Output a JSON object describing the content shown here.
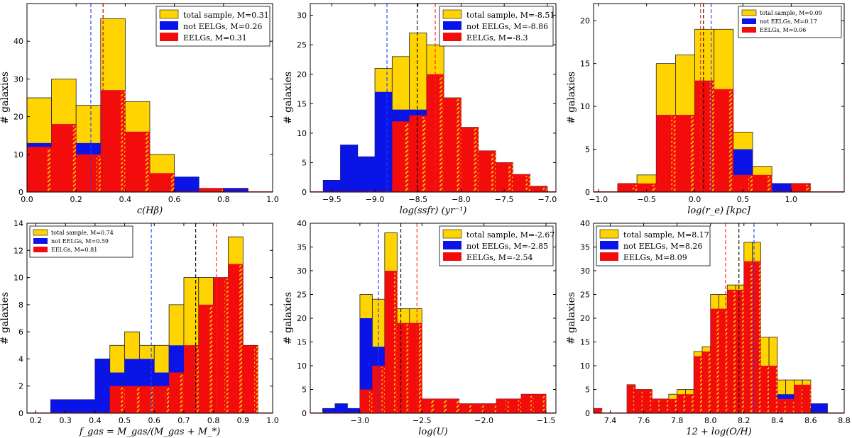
{
  "figure": {
    "ylabel": "# galaxies"
  },
  "colors": {
    "total": "#FFD400",
    "not": "#0A14E6",
    "eelg": "#F20C0C",
    "median_total": "#000000",
    "median_not": "#1E3CFF",
    "median_eelg": "#FF2020"
  },
  "chart_data": [
    {
      "type": "bar",
      "name": "c-hbeta",
      "xlabel": "c(Hβ)",
      "ylabel": "# galaxies",
      "xlim": [
        0.0,
        1.0
      ],
      "ylim": [
        0,
        50
      ],
      "xticks": [
        0.0,
        0.2,
        0.4,
        0.6,
        0.8,
        1.0
      ],
      "xtick_labels": [
        "0.0",
        "0.2",
        "0.4",
        "0.6",
        "0.8",
        "1.0"
      ],
      "yticks": [
        0,
        10,
        20,
        30,
        40
      ],
      "edges": [
        0.0,
        0.1,
        0.2,
        0.3,
        0.4,
        0.5,
        0.6,
        0.7,
        0.8,
        0.9,
        1.0
      ],
      "series": [
        {
          "name": "total sample",
          "label": "total sample, M=0.31",
          "values": [
            25,
            30,
            23,
            46,
            24,
            10,
            4,
            1,
            1,
            0
          ]
        },
        {
          "name": "not EELGs",
          "label": "not EELGs, M=0.26",
          "values": [
            13,
            18,
            13,
            27,
            16,
            5,
            4,
            0,
            1,
            0
          ]
        },
        {
          "name": "EELGs",
          "label": "EELGs, M=0.31",
          "values": [
            12,
            18,
            10,
            27,
            16,
            5,
            0,
            1,
            0,
            0
          ]
        }
      ],
      "medians": {
        "total": 0.31,
        "not": 0.26,
        "eelg": 0.31
      },
      "legend_size": "large"
    },
    {
      "type": "bar",
      "name": "ssfr",
      "xlabel": "log(ssfr) (yr⁻¹)",
      "ylabel": "# galaxies",
      "xlim": [
        -9.75,
        -6.9
      ],
      "ylim": [
        0,
        32
      ],
      "xticks": [
        -9.5,
        -9.0,
        -8.5,
        -8.0,
        -7.5,
        -7.0
      ],
      "xtick_labels": [
        "−9.5",
        "−9.0",
        "−8.5",
        "−8.0",
        "−7.5",
        "−7.0"
      ],
      "yticks": [
        0,
        5,
        10,
        15,
        20,
        25,
        30
      ],
      "edges": [
        -9.6,
        -9.4,
        -9.2,
        -9.0,
        -8.8,
        -8.6,
        -8.4,
        -8.2,
        -8.0,
        -7.8,
        -7.6,
        -7.4,
        -7.2,
        -7.0
      ],
      "series": [
        {
          "name": "total sample",
          "label": "total sample, M=-8.51",
          "values": [
            2,
            8,
            6,
            21,
            23,
            27,
            25,
            16,
            11,
            7,
            5,
            3,
            1
          ]
        },
        {
          "name": "not EELGs",
          "label": "not EELGs, M=-8.86",
          "values": [
            2,
            8,
            6,
            17,
            14,
            14,
            11,
            4,
            2,
            1,
            1,
            0,
            0
          ]
        },
        {
          "name": "EELGs",
          "label": "EELGs, M=-8.3",
          "values": [
            0,
            0,
            0,
            0,
            12,
            13,
            20,
            16,
            11,
            7,
            5,
            3,
            1
          ]
        }
      ],
      "medians": {
        "total": -8.51,
        "not": -8.86,
        "eelg": -8.3
      },
      "legend_size": "large"
    },
    {
      "type": "bar",
      "name": "log-re",
      "xlabel": "log(r_e) [kpc]",
      "ylabel": "# galaxies",
      "xlim": [
        -1.05,
        1.55
      ],
      "ylim": [
        0,
        22
      ],
      "xticks": [
        -1.0,
        -0.5,
        0.0,
        0.5,
        1.0
      ],
      "xtick_labels": [
        "−1.0",
        "−0.5",
        "0.0",
        "0.5",
        "1.0"
      ],
      "yticks": [
        0,
        5,
        10,
        15,
        20
      ],
      "edges": [
        -0.8,
        -0.6,
        -0.4,
        -0.2,
        0.0,
        0.2,
        0.4,
        0.6,
        0.8,
        1.0,
        1.2
      ],
      "series": [
        {
          "name": "total sample",
          "label": "total sample, M=0.09",
          "values": [
            1,
            2,
            15,
            16,
            19,
            19,
            7,
            3,
            1,
            1
          ]
        },
        {
          "name": "not EELGs",
          "label": "not EELGs, M=0.17",
          "values": [
            0,
            1,
            9,
            9,
            13,
            12,
            5,
            1,
            1,
            0
          ]
        },
        {
          "name": "EELGs",
          "label": "EELGs, M=0.06",
          "values": [
            1,
            1,
            9,
            9,
            13,
            12,
            2,
            2,
            0,
            1
          ]
        }
      ],
      "medians": {
        "total": 0.09,
        "not": 0.17,
        "eelg": 0.06
      },
      "legend_size": "small"
    },
    {
      "type": "bar",
      "name": "f-gas",
      "xlabel": "f_gas = M_gas/(M_gas + M_*)",
      "ylabel": "# galaxies",
      "xlim": [
        0.17,
        1.0
      ],
      "ylim": [
        0,
        14
      ],
      "xticks": [
        0.2,
        0.3,
        0.4,
        0.5,
        0.6,
        0.7,
        0.8,
        0.9,
        1.0
      ],
      "xtick_labels": [
        "0.2",
        "0.3",
        "0.4",
        "0.5",
        "0.6",
        "0.7",
        "0.8",
        "0.9",
        "1.0"
      ],
      "yticks": [
        0,
        2,
        4,
        6,
        8,
        10,
        12,
        14
      ],
      "edges": [
        0.25,
        0.3,
        0.35,
        0.4,
        0.45,
        0.5,
        0.55,
        0.6,
        0.65,
        0.7,
        0.75,
        0.8,
        0.85,
        0.9,
        0.95
      ],
      "series": [
        {
          "name": "total sample",
          "label": "total sample, M=0.74",
          "values": [
            1,
            1,
            1,
            4,
            5,
            6,
            5,
            5,
            8,
            10,
            10,
            10,
            13,
            5
          ]
        },
        {
          "name": "not EELGs",
          "label": "not EELGs, M=0.59",
          "values": [
            1,
            1,
            1,
            4,
            3,
            4,
            4,
            3,
            5,
            5,
            2,
            2,
            2,
            0
          ]
        },
        {
          "name": "EELGs",
          "label": "EELGs, M=0.81",
          "values": [
            0,
            0,
            0,
            0,
            2,
            2,
            2,
            2,
            3,
            5,
            8,
            10,
            11,
            5
          ]
        }
      ],
      "medians": {
        "total": 0.74,
        "not": 0.59,
        "eelg": 0.81
      },
      "legend_size": "small"
    },
    {
      "type": "bar",
      "name": "log-u",
      "xlabel": "log(U)",
      "ylabel": "# galaxies",
      "xlim": [
        -3.4,
        -1.42
      ],
      "ylim": [
        0,
        40
      ],
      "xticks": [
        -3.0,
        -2.5,
        -2.0,
        -1.5
      ],
      "xtick_labels": [
        "−3.0",
        "−2.5",
        "−2.0",
        "−1.5"
      ],
      "yticks": [
        0,
        5,
        10,
        15,
        20,
        25,
        30,
        35,
        40
      ],
      "edges": [
        -3.3,
        -3.2,
        -3.1,
        -3.0,
        -2.9,
        -2.8,
        -2.7,
        -2.6,
        -2.5,
        -2.4,
        -2.3,
        -2.2,
        -2.1,
        -2.0,
        -1.9,
        -1.8,
        -1.7,
        -1.6,
        -1.5
      ],
      "series": [
        {
          "name": "total sample",
          "label": "total sample, M=-2.67",
          "values": [
            1,
            2,
            1,
            25,
            24,
            38,
            22,
            22,
            3,
            3,
            3,
            2,
            2,
            2,
            3,
            3,
            4,
            4
          ]
        },
        {
          "name": "not EELGs",
          "label": "not EELGs, M=-2.85",
          "values": [
            1,
            2,
            1,
            20,
            14,
            8,
            3,
            3,
            0,
            0,
            0,
            0,
            0,
            0,
            0,
            0,
            0,
            0
          ]
        },
        {
          "name": "EELGs",
          "label": "EELGs, M=-2.54",
          "values": [
            0,
            0,
            0,
            5,
            10,
            30,
            19,
            19,
            3,
            3,
            3,
            2,
            2,
            2,
            3,
            3,
            4,
            4
          ]
        }
      ],
      "medians": {
        "total": -2.67,
        "not": -2.85,
        "eelg": -2.54
      },
      "legend_size": "large"
    },
    {
      "type": "bar",
      "name": "metallicity",
      "xlabel": "12 + log(O/H)",
      "ylabel": "# galaxies",
      "xlim": [
        7.3,
        8.8
      ],
      "ylim": [
        0,
        40
      ],
      "xticks": [
        7.4,
        7.6,
        7.8,
        8.0,
        8.2,
        8.4,
        8.6,
        8.8
      ],
      "xtick_labels": [
        "7.4",
        "7.6",
        "7.8",
        "8.0",
        "8.2",
        "8.4",
        "8.6",
        "8.8"
      ],
      "yticks": [
        0,
        5,
        10,
        15,
        20,
        25,
        30,
        35,
        40
      ],
      "edges": [
        7.3,
        7.35,
        7.4,
        7.45,
        7.5,
        7.55,
        7.6,
        7.65,
        7.7,
        7.75,
        7.8,
        7.85,
        7.9,
        7.95,
        8.0,
        8.05,
        8.1,
        8.15,
        8.2,
        8.25,
        8.3,
        8.35,
        8.4,
        8.45,
        8.5,
        8.55,
        8.6,
        8.65,
        8.7
      ],
      "series": [
        {
          "name": "total sample",
          "label": "total sample, M=8.17",
          "values": [
            1,
            0,
            0,
            0,
            6,
            5,
            5,
            3,
            3,
            4,
            5,
            5,
            13,
            14,
            25,
            25,
            27,
            27,
            36,
            36,
            16,
            16,
            7,
            7,
            7,
            7,
            2,
            2
          ]
        },
        {
          "name": "not EELGs",
          "label": "not EELGs, M=8.26",
          "values": [
            0,
            0,
            0,
            0,
            0,
            0,
            0,
            0,
            0,
            1,
            1,
            1,
            1,
            1,
            3,
            3,
            1,
            1,
            4,
            4,
            6,
            6,
            4,
            4,
            1,
            1,
            2,
            2
          ]
        },
        {
          "name": "EELGs",
          "label": "EELGs, M=8.09",
          "values": [
            1,
            0,
            0,
            0,
            6,
            5,
            5,
            3,
            3,
            3,
            4,
            4,
            12,
            13,
            22,
            22,
            26,
            26,
            32,
            32,
            10,
            10,
            3,
            3,
            6,
            6,
            0,
            0
          ]
        }
      ],
      "medians": {
        "total": 8.17,
        "not": 8.26,
        "eelg": 8.09
      },
      "legend_size": "large"
    }
  ]
}
